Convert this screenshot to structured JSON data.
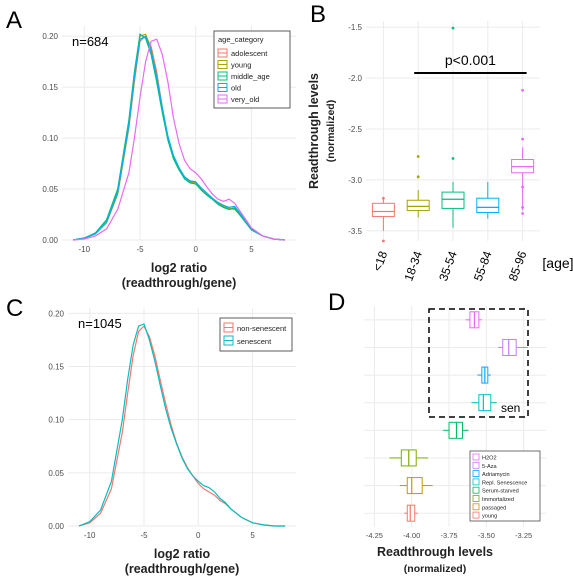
{
  "panels": [
    {
      "letter": "A"
    },
    {
      "letter": "B"
    },
    {
      "letter": "C"
    },
    {
      "letter": "D"
    }
  ],
  "colors": {
    "adolescent": "#f8766d",
    "young": "#a3a500",
    "middle_age": "#00bf7d",
    "old": "#00b0f6",
    "very_old": "#e76bf3",
    "non_senescent": "#f8766d",
    "senescent": "#00bfc4",
    "grid": "#ebebeb",
    "d_H2O2": "#e76bf3",
    "d_5Aza": "#c77cff",
    "d_Adriamycin": "#00a9ff",
    "d_ReplSen": "#00bfc4",
    "d_Serum": "#00be67",
    "d_Immort": "#7cae00",
    "d_passaged": "#cd9600",
    "d_young": "#f8766d"
  },
  "chart_data": [
    {
      "panel": "A",
      "type": "line",
      "annotation": "n=684",
      "xlabel": "log2 ratio\n(readthrough/gene)",
      "ylabel": "",
      "xlim": [
        -12,
        9
      ],
      "ylim": [
        0,
        0.21
      ],
      "xticks": [
        -10,
        -5,
        0,
        5
      ],
      "yticks": [
        0.0,
        0.05,
        0.1,
        0.15,
        0.2
      ],
      "ytick_labels": [
        "0.00",
        "0.05",
        "0.10",
        "0.15",
        "0.20"
      ],
      "legend_title": "age_category",
      "legend_position": "top-right",
      "x": [
        -11,
        -10,
        -9,
        -8,
        -7,
        -6,
        -5.5,
        -5,
        -4.5,
        -4,
        -3.5,
        -3,
        -2.5,
        -2,
        -1.5,
        -1,
        -0.5,
        0,
        0.5,
        1,
        1.5,
        2,
        2.5,
        3,
        3.5,
        4,
        5,
        6,
        7,
        8
      ],
      "series": [
        {
          "name": "adolescent",
          "values": [
            0.0,
            0.002,
            0.006,
            0.018,
            0.045,
            0.11,
            0.155,
            0.195,
            0.2,
            0.19,
            0.165,
            0.13,
            0.1,
            0.082,
            0.07,
            0.062,
            0.058,
            0.057,
            0.05,
            0.045,
            0.04,
            0.035,
            0.032,
            0.03,
            0.032,
            0.025,
            0.01,
            0.004,
            0.001,
            0.0
          ]
        },
        {
          "name": "young",
          "values": [
            0.0,
            0.002,
            0.006,
            0.017,
            0.045,
            0.112,
            0.16,
            0.2,
            0.202,
            0.188,
            0.16,
            0.128,
            0.1,
            0.08,
            0.069,
            0.061,
            0.057,
            0.056,
            0.049,
            0.044,
            0.04,
            0.036,
            0.033,
            0.031,
            0.03,
            0.024,
            0.01,
            0.004,
            0.001,
            0.0
          ]
        },
        {
          "name": "middle_age",
          "values": [
            0.0,
            0.002,
            0.007,
            0.02,
            0.05,
            0.118,
            0.165,
            0.202,
            0.198,
            0.182,
            0.155,
            0.125,
            0.098,
            0.08,
            0.069,
            0.06,
            0.056,
            0.055,
            0.049,
            0.044,
            0.04,
            0.035,
            0.032,
            0.03,
            0.031,
            0.024,
            0.01,
            0.004,
            0.001,
            0.0
          ]
        },
        {
          "name": "old",
          "values": [
            0.0,
            0.002,
            0.006,
            0.018,
            0.047,
            0.113,
            0.16,
            0.197,
            0.2,
            0.186,
            0.16,
            0.13,
            0.102,
            0.083,
            0.071,
            0.062,
            0.058,
            0.057,
            0.051,
            0.046,
            0.041,
            0.037,
            0.034,
            0.032,
            0.033,
            0.026,
            0.011,
            0.004,
            0.001,
            0.0
          ]
        },
        {
          "name": "very_old",
          "values": [
            0.0,
            0.001,
            0.004,
            0.011,
            0.03,
            0.066,
            0.1,
            0.14,
            0.175,
            0.195,
            0.197,
            0.182,
            0.155,
            0.12,
            0.095,
            0.078,
            0.07,
            0.066,
            0.06,
            0.052,
            0.045,
            0.04,
            0.038,
            0.04,
            0.036,
            0.028,
            0.012,
            0.004,
            0.001,
            0.0
          ]
        }
      ]
    },
    {
      "panel": "B",
      "type": "box",
      "ylabel": "Readthrough levels\n(normalized)",
      "xlabel": "[age]",
      "categories": [
        "<18",
        "18-34",
        "35-54",
        "55-84",
        "85-96"
      ],
      "ylim": [
        -3.6,
        -1.44
      ],
      "yticks": [
        -3.5,
        -3.0,
        -2.5,
        -2.0,
        -1.5
      ],
      "ytick_labels": [
        "-3.5",
        "-3.0",
        "-2.5",
        "-2.0",
        "-1.5"
      ],
      "annotation": "p<0.001",
      "significance_bar": {
        "from": "18-34",
        "to": "85-96",
        "y": -1.95
      },
      "boxes": [
        {
          "min": -3.5,
          "q1": -3.36,
          "median": -3.31,
          "q3": -3.23,
          "max": -3.17,
          "outliers": [
            -3.6,
            -3.18
          ]
        },
        {
          "min": -3.37,
          "q1": -3.3,
          "median": -3.26,
          "q3": -3.2,
          "max": -3.1,
          "outliers": [
            -2.77,
            -2.97
          ]
        },
        {
          "min": -3.47,
          "q1": -3.28,
          "median": -3.19,
          "q3": -3.12,
          "max": -3.02,
          "outliers": [
            -1.51,
            -2.79
          ]
        },
        {
          "min": -3.38,
          "q1": -3.32,
          "median": -3.27,
          "q3": -3.18,
          "max": -3.02,
          "outliers": []
        },
        {
          "min": -3.3,
          "q1": -2.93,
          "median": -2.87,
          "q3": -2.8,
          "max": -2.68,
          "outliers": [
            -2.12,
            -2.6,
            -3.07,
            -3.27,
            -3.33
          ]
        }
      ]
    },
    {
      "panel": "C",
      "type": "line",
      "annotation": "n=1045",
      "xlabel": "log2 ratio\n(readthrough/gene)",
      "ylabel": "",
      "xlim": [
        -12,
        9
      ],
      "ylim": [
        0,
        0.205
      ],
      "xticks": [
        -10,
        -5,
        0,
        5
      ],
      "yticks": [
        0.0,
        0.05,
        0.1,
        0.15,
        0.2
      ],
      "ytick_labels": [
        "0.00",
        "0.05",
        "0.10",
        "0.15",
        "0.20"
      ],
      "legend_position": "top-right",
      "x": [
        -11,
        -10,
        -9,
        -8,
        -7,
        -6.5,
        -6,
        -5.5,
        -5,
        -4.5,
        -4,
        -3.5,
        -3,
        -2.5,
        -2,
        -1.5,
        -1,
        -0.5,
        0,
        0.5,
        1,
        1.5,
        2,
        2.5,
        3,
        4,
        5,
        6,
        7,
        8
      ],
      "series": [
        {
          "name": "non-senescent",
          "values": [
            0.0,
            0.003,
            0.012,
            0.035,
            0.088,
            0.125,
            0.16,
            0.183,
            0.188,
            0.178,
            0.16,
            0.137,
            0.115,
            0.095,
            0.078,
            0.065,
            0.055,
            0.047,
            0.04,
            0.035,
            0.032,
            0.029,
            0.024,
            0.021,
            0.016,
            0.008,
            0.003,
            0.001,
            0.0,
            0.0
          ]
        },
        {
          "name": "senescent",
          "values": [
            0.0,
            0.004,
            0.015,
            0.042,
            0.1,
            0.138,
            0.17,
            0.188,
            0.19,
            0.175,
            0.155,
            0.132,
            0.11,
            0.092,
            0.077,
            0.064,
            0.054,
            0.047,
            0.042,
            0.038,
            0.036,
            0.032,
            0.026,
            0.022,
            0.016,
            0.008,
            0.003,
            0.001,
            0.0,
            0.0
          ]
        }
      ]
    },
    {
      "panel": "D",
      "type": "box",
      "orientation": "horizontal",
      "xlabel": "Readthrough levels\n(normalized)",
      "xlim": [
        -4.32,
        -3.1
      ],
      "xticks": [
        -4.25,
        -4.0,
        -3.75,
        -3.5,
        -3.25
      ],
      "xtick_labels": [
        "-4.25",
        "-4.00",
        "-3.75",
        "-3.50",
        "-3.25"
      ],
      "annotation": "sen",
      "categories": [
        "young",
        "passaged",
        "Immortalized",
        "Serum-starved",
        "Repl. Senescence",
        "Adriamycin",
        "5-Aza",
        "H2O2"
      ],
      "legend_position": "bottom-right",
      "legend_order": [
        "H2O2",
        "5-Aza",
        "Adriamycin",
        "Repl. Senescence",
        "Serum-starved",
        "Immortalized",
        "passaged",
        "young"
      ],
      "boxes": [
        {
          "category": "young",
          "min": -4.05,
          "q1": -4.03,
          "median": -4.01,
          "q3": -3.98,
          "max": -3.96
        },
        {
          "category": "passaged",
          "min": -4.08,
          "q1": -4.03,
          "median": -4.0,
          "q3": -3.93,
          "max": -3.86
        },
        {
          "category": "Immortalized",
          "min": -4.15,
          "q1": -4.07,
          "median": -4.02,
          "q3": -3.97,
          "max": -3.89
        },
        {
          "category": "Serum-starved",
          "min": -3.79,
          "q1": -3.75,
          "median": -3.7,
          "q3": -3.66,
          "max": -3.62
        },
        {
          "category": "Repl. Senescence",
          "min": -3.6,
          "q1": -3.55,
          "median": -3.52,
          "q3": -3.47,
          "max": -3.43
        },
        {
          "category": "Adriamycin",
          "min": -3.56,
          "q1": -3.53,
          "median": -3.51,
          "q3": -3.49,
          "max": -3.47
        },
        {
          "category": "5-Aza",
          "min": -3.42,
          "q1": -3.39,
          "median": -3.35,
          "q3": -3.3,
          "max": -3.22
        },
        {
          "category": "H2O2",
          "min": -3.64,
          "q1": -3.61,
          "median": -3.58,
          "q3": -3.55,
          "max": -3.53
        }
      ]
    }
  ]
}
